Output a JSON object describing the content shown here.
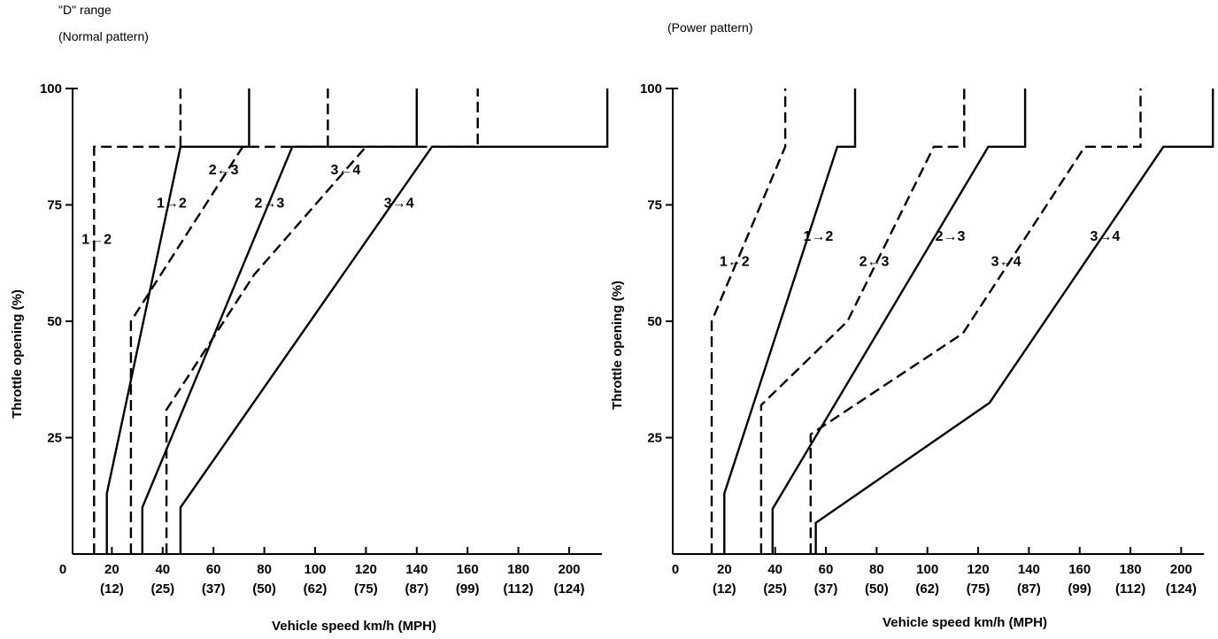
{
  "chart_data": [
    {
      "type": "line",
      "title": "\"D\" range",
      "subtitle": "(Normal pattern)",
      "xlabel": "Vehicle speed km/h (MPH)",
      "ylabel": "Throttle opening (%)",
      "xlim": [
        0,
        215
      ],
      "ylim": [
        0,
        100
      ],
      "x_ticks": [
        0,
        20,
        40,
        60,
        80,
        100,
        120,
        140,
        160,
        180,
        200
      ],
      "x_tick_labels": [
        "0",
        "20",
        "40",
        "60",
        "80",
        "100",
        "120",
        "140",
        "160",
        "180",
        "200"
      ],
      "x_mph_labels": [
        "(12)",
        "(25)",
        "(37)",
        "(50)",
        "(62)",
        "(75)",
        "(87)",
        "(99)",
        "(112)",
        "(124)"
      ],
      "y_ticks": [
        25,
        50,
        75,
        100
      ],
      "y_tick_labels": [
        "25",
        "50",
        "75",
        "100"
      ],
      "grid": false,
      "series": [
        {
          "name": "1→2 upshift",
          "style": "solid",
          "points": [
            [
              18,
              0
            ],
            [
              18,
              13
            ],
            [
              47,
              87.5
            ],
            [
              74,
              87.5
            ],
            [
              74,
              100
            ]
          ]
        },
        {
          "name": "1←2 downshift",
          "style": "dashed",
          "points": [
            [
              13,
              0
            ],
            [
              13,
              87.5
            ],
            [
              47,
              87.5
            ],
            [
              47,
              100
            ]
          ]
        },
        {
          "name": "2→3 upshift",
          "style": "solid",
          "points": [
            [
              32,
              0
            ],
            [
              32,
              10
            ],
            [
              91,
              87.5
            ],
            [
              140,
              87.5
            ],
            [
              140,
              100
            ]
          ]
        },
        {
          "name": "2←3 downshift",
          "style": "dashed",
          "points": [
            [
              27.5,
              0
            ],
            [
              27.5,
              50
            ],
            [
              71.5,
              87.5
            ],
            [
              105,
              87.5
            ],
            [
              105,
              100
            ]
          ]
        },
        {
          "name": "3→4 upshift",
          "style": "solid",
          "points": [
            [
              47,
              0
            ],
            [
              47,
              10
            ],
            [
              146,
              87.5
            ],
            [
              215,
              87.5
            ],
            [
              215,
              100
            ]
          ]
        },
        {
          "name": "3←4 downshift",
          "style": "dashed",
          "points": [
            [
              41.5,
              0
            ],
            [
              41.5,
              31
            ],
            [
              76,
              60
            ],
            [
              120,
              87.5
            ],
            [
              164,
              87.5
            ],
            [
              164,
              100
            ]
          ]
        }
      ],
      "annotations": [
        {
          "text": "2←3",
          "x": 64,
          "y": 82.7
        },
        {
          "text": "3←4",
          "x": 112,
          "y": 82.7
        },
        {
          "text": "1→2",
          "x": 43.5,
          "y": 75.6
        },
        {
          "text": "2→3",
          "x": 82,
          "y": 75.6
        },
        {
          "text": "3→4",
          "x": 133,
          "y": 75.6
        },
        {
          "text": "1←2",
          "x": 14,
          "y": 67.8
        }
      ]
    },
    {
      "type": "line",
      "title": "(Power pattern)",
      "xlabel": "Vehicle speed km/h (MPH)",
      "ylabel": "Throttle opening (%)",
      "xlim": [
        0,
        215
      ],
      "ylim": [
        0,
        100
      ],
      "x_ticks": [
        0,
        20,
        40,
        60,
        80,
        100,
        120,
        140,
        160,
        180,
        200
      ],
      "x_tick_labels": [
        "0",
        "20",
        "40",
        "60",
        "80",
        "100",
        "120",
        "140",
        "160",
        "180",
        "200"
      ],
      "x_mph_labels": [
        "(12)",
        "(25)",
        "(37)",
        "(50)",
        "(62)",
        "(75)",
        "(87)",
        "(99)",
        "(112)",
        "(124)"
      ],
      "y_ticks": [
        25,
        50,
        75,
        100
      ],
      "y_tick_labels": [
        "25",
        "50",
        "75",
        "100"
      ],
      "grid": false,
      "series": [
        {
          "name": "1→2 upshift",
          "style": "solid",
          "points": [
            [
              20,
              0
            ],
            [
              20,
              13
            ],
            [
              64.5,
              87.5
            ],
            [
              71.5,
              87.5
            ],
            [
              71.5,
              100
            ]
          ]
        },
        {
          "name": "1←2 downshift",
          "style": "dashed",
          "points": [
            [
              15,
              0
            ],
            [
              15,
              50
            ],
            [
              44,
              87.5
            ],
            [
              44,
              100
            ]
          ]
        },
        {
          "name": "2→3 upshift",
          "style": "solid",
          "points": [
            [
              39,
              0
            ],
            [
              39,
              9.7
            ],
            [
              124,
              87.5
            ],
            [
              138.5,
              87.5
            ],
            [
              138.5,
              100
            ]
          ]
        },
        {
          "name": "2←3 downshift",
          "style": "dashed",
          "points": [
            [
              34.5,
              0
            ],
            [
              34.5,
              32
            ],
            [
              68.5,
              50
            ],
            [
              102.5,
              87.5
            ],
            [
              114.5,
              87.5
            ],
            [
              114.5,
              100
            ]
          ]
        },
        {
          "name": "3→4 upshift",
          "style": "solid",
          "points": [
            [
              56,
              0
            ],
            [
              56,
              6.7
            ],
            [
              124.5,
              32.5
            ],
            [
              193,
              87.5
            ],
            [
              212.5,
              87.5
            ],
            [
              212.5,
              100
            ]
          ]
        },
        {
          "name": "3←4 downshift",
          "style": "dashed",
          "points": [
            [
              54,
              0
            ],
            [
              54,
              25.7
            ],
            [
              114,
              47.4
            ],
            [
              162,
              87.5
            ],
            [
              184,
              87.5
            ],
            [
              184,
              100
            ]
          ]
        }
      ],
      "annotations": [
        {
          "text": "1→2",
          "x": 57,
          "y": 68.4
        },
        {
          "text": "2→3",
          "x": 109,
          "y": 68.4
        },
        {
          "text": "3→4",
          "x": 170,
          "y": 68.4
        },
        {
          "text": "1←2",
          "x": 24,
          "y": 63
        },
        {
          "text": "2←3",
          "x": 79,
          "y": 63
        },
        {
          "text": "3←4",
          "x": 131,
          "y": 63
        }
      ]
    }
  ]
}
